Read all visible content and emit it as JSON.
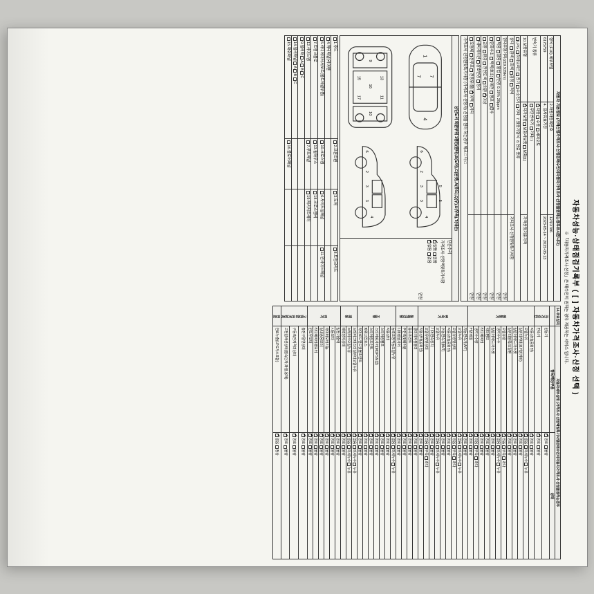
{
  "title": "자동차성능·상태점검기록부 ( [ ] 자동차가격조사·산정 선택 )",
  "subtitle": "※「자동차가격조사·산정」은 매수인이 원하는 경우 제공하는 서비스 입니다.",
  "basicHeader": "자동차 기본정보 (가격산정가격조사·산정은매수인이자동차가격조사·산정을원하는경우표시합니다)",
  "rows": {
    "modelRow": {
      "label": "형식 (F10) 세부모델",
      "reg": "2.자동차등록번호",
      "regno": "12무3786"
    },
    "vin": "6175759",
    "inspect": "4. 검사유효기간",
    "period": "2023-05-14 ~ 2025-05-13",
    "trans_label": "변속기 종류",
    "trans_opts": [
      "자동",
      "수동",
      "세미오토"
    ],
    "trans_opts2": [
      "무단변속기",
      "기타( )"
    ],
    "guarantee": "10.보증유형",
    "g_opts": [
      "자가보증",
      "보험사보증",
      "보험[1]"
    ],
    "est_label": "가격산정기준가격",
    "fuel_opts": [
      "LPG",
      "하이브리드",
      "전기",
      "수소전기",
      "기타",
      "7.원동기형식",
      "8.연료 종류"
    ],
    "color_opts": [
      "흰색",
      "회색",
      "검정",
      "적색",
      "적갈",
      "주황",
      "황색",
      "황/금색/남부품",
      "기타조사·신청원및특기사항"
    ],
    "km_label": "현재주행거리(219,939km)",
    "km_amt": "만원",
    "state": "상태",
    "dupe_opts": [
      "적음",
      "불법",
      "0.19%",
      "28ppm",
      "도색"
    ],
    "dupe_opts2": [
      "많음",
      "변경",
      "구조",
      "영업용",
      "0%"
    ],
    "ext_opts": [
      "탄화수소",
      "백색(호소)",
      "예연",
      "램프",
      "합수"
    ],
    "ext_opts2": [
      "헤드",
      "불량"
    ],
    "int_opts": [
      "교환",
      "판금",
      "전면도색",
      "외관",
      "이상"
    ],
    "int_opts2": [
      "내비게이션",
      "상호변경",
      "정지"
    ],
    "wear_opts": [
      "오염세",
      "선루프",
      "전동유(불)",
      "이력"
    ],
    "wear_opts2": [
      "기타"
    ],
    "note": "가격조사·신청원및특기사항  (가격조사·산정자) 신청을 원이 하는경우 체크 □ 다 □",
    "diagram_title": "상단도리 외판부위 1랭킹(팬더),B(도어),C(본넷),A(후드),Q(우),U(우측),T(내손) ",
    "dan": "단순수리",
    "grade": "가격조사·산정액및특기사항",
    "gokey": [
      "없음",
      "없음",
      "없음"
    ],
    "grade_val": "만원",
    "left_panels": [
      "1.후드",
      "2.프론트펜",
      "3.도어",
      "8.트렁크리드",
      "4.쿼터패널(리어펜",
      "5.라디에이터서포트(볼트체결부품)",
      "10.크로스멤",
      "6.사이드실패널",
      "11.인사이드패널",
      "7.트렁크플로",
      "13.휠하우스",
      "18.크로스멤버",
      "12.사이드멤",
      "7.루프패널",
      "19.패키지트레이",
      "9.필러패",
      "14.필러패널",
      "15.대쉬패널",
      "16.플로어패널"
    ],
    "left_panel_sfx": [
      "A",
      "B",
      "C"
    ],
    "section14": "14.주요장치",
    "right_hdr": [
      "자동차세부상태 (가격조사·산정액및특기사항은매수인이자동차가격조사·산정을원하는경우",
      "항목/해당부품",
      "상태"
    ],
    "groups": [
      {
        "name": "자가진단",
        "items": [
          "원동기",
          "변속기"
        ]
      },
      {
        "name": "원동기",
        "items": [
          "작동상태(공회전)",
          "오일누유",
          "실린더커버(로커암커버)",
          "실린더헤드/가스켓",
          "실린더블록/오일팬",
          "오일유량",
          "냉각수누수",
          "실린더헤드/가스켓",
          "워터펌프",
          "라디에이터",
          "냉각수수량",
          "커먼레일"
        ]
      },
      {
        "name": "변속기",
        "items": [
          "자동변속기(A/T)",
          "오일누유",
          "오일유량및상태",
          "작동상태(공회전)",
          "수동변속기(M/T)",
          "오일누유",
          "기어변속장치",
          "오일유량및상태",
          "작동상태(공회전)"
        ]
      },
      {
        "name": "동력전달",
        "items": [
          "클러치어셈블리",
          "등속죠인트",
          "추진축및베어링",
          "디퍼렌셜기어"
        ]
      },
      {
        "name": "조향",
        "items": [
          "동력조향작동오일누유",
          "작동상태",
          "스티어링펌프",
          "스티어링기어(MDPS포함)",
          "스티어링조인트",
          "파워고압호스",
          "타이로드엔드및볼조인트"
        ]
      },
      {
        "name": "제동",
        "items": [
          "브레이크마스터실린더오일누유",
          "브레이크오일누유",
          "배력장치상태"
        ]
      },
      {
        "name": "전기",
        "items": [
          "발전기출력",
          "시동모터",
          "와이퍼모터기능",
          "실내송풍모터",
          "라디에이터팬모터",
          "윈도우모터"
        ]
      },
      {
        "name": "고전압 전기장치",
        "items": [
          "충전구절연상태",
          "구동축전지격리상태",
          "고전압배선상태(접속단자,파열,용해)"
        ]
      },
      {
        "name": "연료",
        "items": [
          "연료누출(LPG가스포함)"
        ]
      }
    ],
    "status_opts": [
      "양호",
      "불량",
      "없음",
      "미세누수",
      "누수",
      "미세누유",
      "부족",
      "과다",
      "누유",
      "정상",
      "적정",
      "있음"
    ]
  }
}
